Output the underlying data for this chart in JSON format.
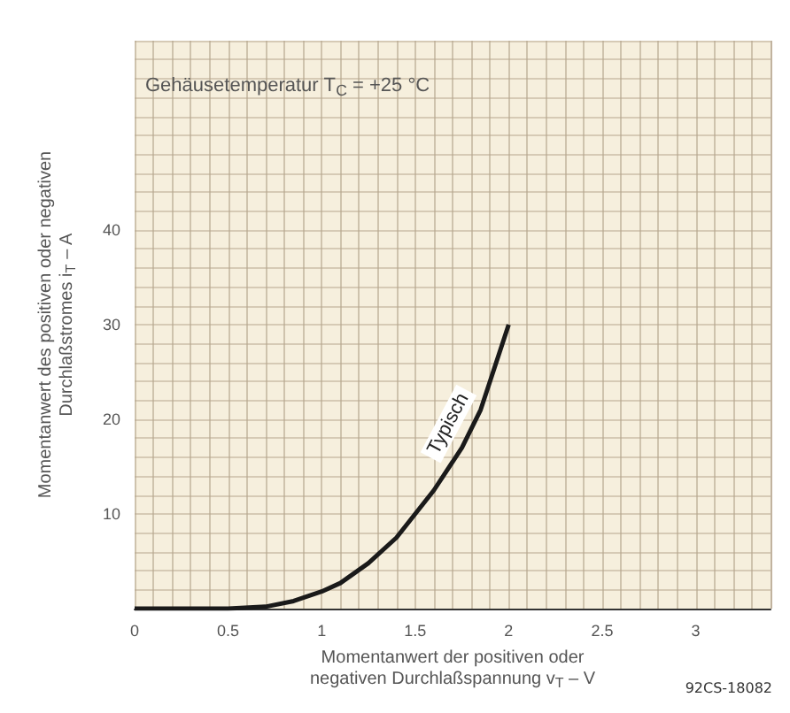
{
  "chart_data": {
    "type": "line",
    "title": "Gehäusetemperatur T$_{C}$ = +25 °C",
    "xlabel": "Momentanwert der positiven oder\nnegativen Durchlaßspannung v$_{T}$ – V",
    "ylabel": "Momentanwert des positiven oder negativen\nDurchlaßstromes i$_{T}$ – A",
    "annotations": [
      "Typisch",
      "92CS-18082"
    ],
    "x": [
      0,
      0.5,
      0.7,
      0.85,
      1.0,
      1.1,
      1.25,
      1.4,
      1.5,
      1.6,
      1.75,
      1.85,
      1.9,
      2.0
    ],
    "series": [
      {
        "color": "#1a1a1a",
        "values": [
          0,
          0,
          0.2,
          0.8,
          1.8,
          2.7,
          4.8,
          7.5,
          10,
          12.5,
          17,
          21,
          24,
          30
        ]
      }
    ],
    "xlim": [
      0,
      3.4
    ],
    "xticks": [
      0,
      {
        "value": 0.1,
        "label": null
      },
      {
        "value": 0.2,
        "label": null
      },
      {
        "value": 0.3,
        "label": null
      },
      {
        "value": 0.4,
        "label": null
      },
      0.5,
      {
        "value": 0.6,
        "label": null
      },
      {
        "value": 0.7,
        "label": null
      },
      {
        "value": 0.8,
        "label": null
      },
      {
        "value": 0.9,
        "label": null
      },
      1,
      {
        "value": 1.1,
        "label": null
      },
      {
        "value": 1.2,
        "label": null
      },
      {
        "value": 1.3,
        "label": null
      },
      {
        "value": 1.4,
        "label": null
      },
      1.5,
      {
        "value": 1.6,
        "label": null
      },
      {
        "value": 1.7,
        "label": null
      },
      {
        "value": 1.8,
        "label": null
      },
      {
        "value": 1.9,
        "label": null
      },
      2,
      {
        "value": 2.1,
        "label": null
      },
      {
        "value": 2.2,
        "label": null
      },
      {
        "value": 2.3,
        "label": null
      },
      {
        "value": 2.4,
        "label": null
      },
      2.5,
      {
        "value": 2.6,
        "label": null
      },
      {
        "value": 2.7,
        "label": null
      },
      {
        "value": 2.8,
        "label": null
      },
      {
        "value": 2.9,
        "label": null
      },
      3,
      {
        "value": 3.1,
        "label": null
      },
      {
        "value": 3.2,
        "label": null
      },
      {
        "value": 3.3,
        "label": null
      },
      {
        "value": 3.4,
        "label": null
      }
    ],
    "ylim": [
      0,
      60
    ],
    "yticks": [
      {
        "value": 0,
        "label": null
      },
      {
        "value": 2,
        "label": null
      },
      {
        "value": 4,
        "label": null
      },
      {
        "value": 6,
        "label": null
      },
      {
        "value": 8,
        "label": null
      },
      10,
      {
        "value": 12,
        "label": null
      },
      {
        "value": 14,
        "label": null
      },
      {
        "value": 16,
        "label": null
      },
      {
        "value": 18,
        "label": null
      },
      20,
      {
        "value": 22,
        "label": null
      },
      {
        "value": 24,
        "label": null
      },
      {
        "value": 26,
        "label": null
      },
      {
        "value": 28,
        "label": null
      },
      30,
      {
        "value": 32,
        "label": null
      },
      {
        "value": 34,
        "label": null
      },
      {
        "value": 36,
        "label": null
      },
      {
        "value": 38,
        "label": null
      },
      40,
      {
        "value": 42,
        "label": null
      },
      {
        "value": 44,
        "label": null
      },
      {
        "value": 46,
        "label": null
      },
      {
        "value": 48,
        "label": null
      },
      {
        "value": 50,
        "label": null
      },
      {
        "value": 52,
        "label": null
      },
      {
        "value": 54,
        "label": null
      },
      {
        "value": 56,
        "label": null
      },
      {
        "value": 58,
        "label": null
      },
      {
        "value": 60,
        "label": null
      }
    ],
    "grid": true,
    "marker": "none",
    "line_style": "solid"
  }
}
